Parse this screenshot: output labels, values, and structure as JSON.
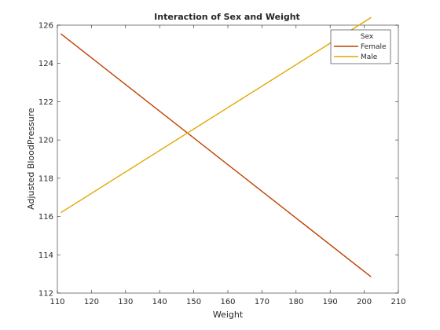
{
  "chart_data": {
    "type": "line",
    "title": "Interaction of Sex and Weight",
    "xlabel": "Weight",
    "ylabel": "Adjusted BloodPressure",
    "xlim": [
      110,
      210
    ],
    "ylim": [
      112,
      126
    ],
    "xticks": [
      110,
      120,
      130,
      140,
      150,
      160,
      170,
      180,
      190,
      200,
      210
    ],
    "yticks": [
      112,
      114,
      116,
      118,
      120,
      122,
      124,
      126
    ],
    "grid": false,
    "legend": {
      "title": "Sex",
      "placement": "top-right"
    },
    "series": [
      {
        "name": "Female",
        "color": "#c04000",
        "x": [
          111,
          202
        ],
        "y": [
          125.55,
          112.85
        ]
      },
      {
        "name": "Male",
        "color": "#e0a800",
        "x": [
          111,
          202
        ],
        "y": [
          116.2,
          126.4
        ]
      }
    ]
  }
}
